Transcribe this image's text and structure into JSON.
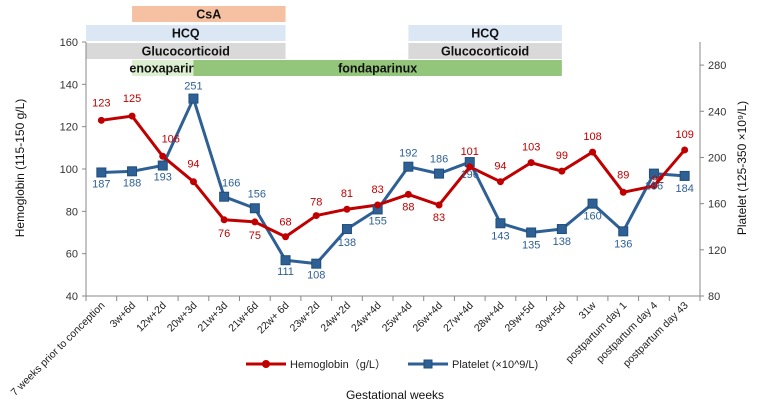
{
  "chart_data": {
    "type": "line",
    "xlabel": "Gestational weeks",
    "ylabel_left": "Hemoglobin  (115-150 g/L)",
    "ylabel_right": "Platelet (125-350 ×10⁹/L)",
    "ylim_left": [
      40,
      160
    ],
    "yticks_left": [
      40,
      60,
      80,
      100,
      120,
      140,
      160
    ],
    "ylim_right": [
      80,
      300
    ],
    "yticks_right": [
      80,
      120,
      160,
      200,
      240,
      280
    ],
    "categories": [
      "7 weeks prior to conception",
      "3w+6d",
      "12w+2d",
      "20w+3d",
      "21w+3d",
      "21w+6d",
      "22w+ 6d",
      "23w+2d",
      "24w+2d",
      "24w+4d",
      "25w+4d",
      "26w+4d",
      "27w+4d",
      "28w+4d",
      "29w+5d",
      "30w+5d",
      "31w",
      "postpartum day 1",
      "postpartum day 4",
      "postpartum day 43"
    ],
    "series": [
      {
        "name": "Hemoglobin（g/L）",
        "axis": "left",
        "color": "#c00000",
        "marker": "circle",
        "values": [
          123,
          125,
          106,
          94,
          76,
          75,
          68,
          78,
          81,
          83,
          88,
          83,
          101,
          94,
          103,
          99,
          108,
          89,
          92,
          109
        ]
      },
      {
        "name": "Platelet (×10^9/L)",
        "axis": "right",
        "color": "#2e6096",
        "marker": "square",
        "values": [
          187,
          188,
          193,
          251,
          166,
          156,
          111,
          108,
          138,
          155,
          192,
          186,
          196,
          143,
          135,
          138,
          160,
          136,
          186,
          184
        ]
      }
    ],
    "data_labels": {
      "hemoglobin": [
        "123",
        "125",
        "106",
        "94",
        "76",
        "75",
        "68",
        "78",
        "81",
        "83",
        "88",
        "83",
        "101",
        "94",
        "103",
        "99",
        "108",
        "89",
        "92",
        "109"
      ],
      "platelet": [
        "187",
        "188",
        "193",
        "251",
        "166",
        "156",
        "111",
        "108",
        "138",
        "155",
        "192",
        "186",
        "196",
        "143",
        "135",
        "138",
        "160",
        "136",
        "186",
        "184"
      ]
    },
    "treatments": [
      {
        "label": "CsA",
        "color": "#f6c0a3",
        "start": "3w+6d",
        "end": "22w+ 6d"
      },
      {
        "label": "HCQ",
        "color": "#dbe7f4",
        "start": "7 weeks prior to conception",
        "end": "22w+ 6d"
      },
      {
        "label": "HCQ",
        "color": "#dbe7f4",
        "start": "25w+4d",
        "end": "30w+5d"
      },
      {
        "label": "Glucocorticoid",
        "color": "#d9d9d9",
        "start": "7 weeks prior to conception",
        "end": "22w+ 6d"
      },
      {
        "label": "Glucocorticoid",
        "color": "#d9d9d9",
        "start": "25w+4d",
        "end": "30w+5d"
      },
      {
        "label": "enoxaparin",
        "color": "#dcefd0",
        "start": "3w+6d",
        "end": "20w+3d"
      },
      {
        "label": "fondaparinux",
        "color": "#93c57a",
        "start": "20w+3d",
        "end": "30w+5d"
      }
    ],
    "legend_position": "bottom-center"
  }
}
